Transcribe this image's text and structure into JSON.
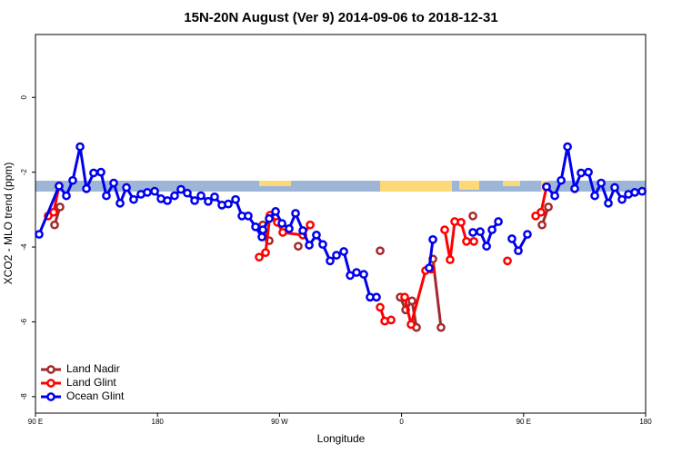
{
  "chart_data": {
    "type": "line",
    "title": "15N-20N August (Ver 9)   2014-09-06 to 2018-12-31",
    "xlabel": "Longitude",
    "ylabel": "XCO2 - MLO trend (ppm)",
    "xlim": [
      90,
      540
    ],
    "ylim": [
      -8.44,
      1.68
    ],
    "xticks": [
      {
        "value": 90,
        "label": "90 E"
      },
      180,
      {
        "value": 270,
        "label": "90 W"
      },
      {
        "value": 360,
        "label": "0"
      },
      {
        "value": 450,
        "label": "90 E"
      },
      {
        "value": 540,
        "label": "180"
      }
    ],
    "yticks": [
      0,
      -2,
      -4,
      -6,
      -8
    ],
    "legend": "lower left",
    "series": [
      {
        "name": "Land Nadir",
        "color": "#a3292c",
        "x": [
          104.1,
          108.1,
          null,
          257.7,
          262.4,
          null,
          283.8,
          null,
          344.2,
          null,
          359.0,
          363.0,
          367.7,
          371.0,
          null,
          383.1,
          389.1,
          null,
          412.6,
          null,
          463.6,
          468.3
        ],
        "values": [
          -3.41,
          -2.93,
          null,
          -3.41,
          -3.83,
          null,
          -3.98,
          null,
          -4.1,
          null,
          -5.34,
          -5.68,
          -5.44,
          -6.15,
          null,
          -4.32,
          -6.15,
          null,
          -3.17,
          null,
          -3.41,
          -2.93
        ]
      },
      {
        "name": "Land Glint",
        "color": "#ff0000",
        "x": [
          99.4,
          103.4,
          107.4,
          null,
          255.0,
          259.7,
          263.0,
          268.4,
          272.4,
          287.2,
          292.6,
          null,
          344.2,
          347.6,
          352.3,
          null,
          362.3,
          367.0,
          377.7,
          381.8,
          null,
          391.8,
          395.8,
          399.2,
          403.9,
          407.9,
          413.3,
          null,
          438.1,
          null,
          458.9,
          462.9,
          466.9
        ],
        "values": [
          -3.17,
          -3.07,
          -2.37,
          null,
          -4.27,
          -4.15,
          -3.15,
          -3.34,
          -3.61,
          -3.68,
          -3.41,
          null,
          -5.61,
          -5.98,
          -5.95,
          null,
          -5.34,
          -6.07,
          -4.63,
          -4.59,
          null,
          -3.54,
          -4.34,
          -3.32,
          -3.34,
          -3.85,
          -3.85,
          null,
          -4.37,
          null,
          -3.17,
          -3.07,
          -2.39
        ]
      },
      {
        "name": "Ocean Glint",
        "color": "#0000ee",
        "x": [
          92.7,
          107.4,
          112.8,
          117.5,
          122.9,
          127.6,
          132.9,
          138.3,
          142.3,
          147.7,
          152.4,
          157.1,
          162.4,
          167.8,
          172.5,
          177.9,
          182.6,
          187.3,
          192.6,
          197.3,
          202.0,
          207.4,
          212.1,
          217.4,
          222.1,
          227.5,
          232.2,
          237.6,
          242.3,
          246.9,
          252.3,
          257.0,
          257.7,
          262.4,
          267.1,
          271.8,
          277.1,
          281.8,
          287.2,
          291.9,
          297.2,
          301.9,
          307.3,
          312.0,
          317.4,
          322.1,
          326.8,
          332.1,
          336.8,
          341.5,
          null,
          380.4,
          383.1,
          null,
          412.6,
          418.0,
          422.7,
          426.7,
          431.4,
          null,
          441.4,
          446.1,
          452.8,
          null,
          466.9,
          473.0,
          477.7,
          482.4,
          487.7,
          492.4,
          497.8,
          502.5,
          507.2,
          512.5,
          517.2,
          522.6,
          527.3,
          532.0,
          537.4
        ],
        "values": [
          -3.66,
          -2.37,
          -2.63,
          -2.22,
          -1.32,
          -2.44,
          -2.02,
          -2.0,
          -2.63,
          -2.29,
          -2.83,
          -2.41,
          -2.73,
          -2.59,
          -2.54,
          -2.51,
          -2.71,
          -2.76,
          -2.63,
          -2.46,
          -2.56,
          -2.76,
          -2.63,
          -2.78,
          -2.66,
          -2.88,
          -2.85,
          -2.73,
          -3.17,
          -3.17,
          -3.46,
          -3.73,
          -3.54,
          -3.24,
          -3.05,
          -3.37,
          -3.51,
          -3.1,
          -3.56,
          -3.95,
          -3.68,
          -3.93,
          -4.37,
          -4.22,
          -4.12,
          -4.76,
          -4.68,
          -4.73,
          -5.34,
          -5.34,
          null,
          -4.56,
          -3.8,
          null,
          -3.61,
          -3.59,
          -3.98,
          -3.54,
          -3.32,
          null,
          -3.78,
          -4.1,
          -3.66,
          null,
          -2.39,
          -2.63,
          -2.22,
          -1.32,
          -2.44,
          -2.02,
          -2.0,
          -2.63,
          -2.29,
          -2.83,
          -2.41,
          -2.73,
          -2.59,
          -2.54,
          -2.51
        ]
      }
    ]
  }
}
